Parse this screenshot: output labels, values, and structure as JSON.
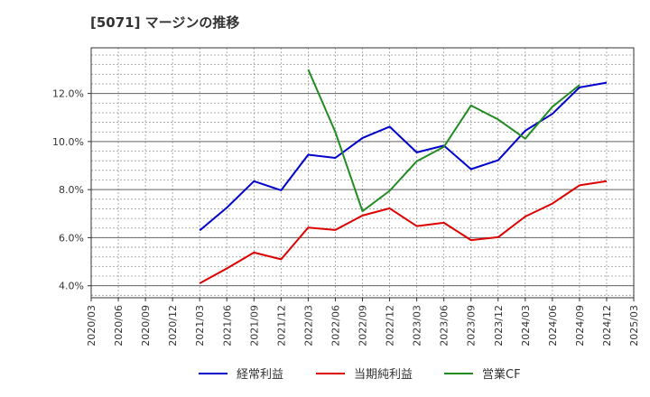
{
  "chart_data": {
    "type": "line",
    "title": "[5071]  マージンの推移",
    "xlabel": "",
    "ylabel": "",
    "ylim": [
      3.5,
      13.9
    ],
    "y_ticks": [
      4.0,
      6.0,
      8.0,
      10.0,
      12.0
    ],
    "y_tick_labels": [
      "4.0%",
      "6.0%",
      "8.0%",
      "10.0%",
      "12.0%"
    ],
    "x_ticks": [
      "2020/03",
      "2020/06",
      "2020/09",
      "2020/12",
      "2021/03",
      "2021/06",
      "2021/09",
      "2021/12",
      "2022/03",
      "2022/06",
      "2022/09",
      "2022/12",
      "2023/03",
      "2023/06",
      "2023/09",
      "2023/12",
      "2024/03",
      "2024/06",
      "2024/09",
      "2024/12",
      "2025/03"
    ],
    "grid": true,
    "legend_position": "bottom",
    "series": [
      {
        "name": "経常利益",
        "color": "#0000cc",
        "x": [
          "2021/03",
          "2021/06",
          "2021/09",
          "2021/12",
          "2022/03",
          "2022/06",
          "2022/09",
          "2022/12",
          "2023/03",
          "2023/06",
          "2023/09",
          "2023/12",
          "2024/03",
          "2024/06",
          "2024/09",
          "2024/12"
        ],
        "values": [
          6.3,
          7.25,
          8.35,
          7.97,
          9.45,
          9.32,
          10.15,
          10.62,
          9.55,
          9.83,
          8.85,
          9.22,
          10.45,
          11.15,
          12.25,
          12.45
        ]
      },
      {
        "name": "当期純利益",
        "color": "#dd0000",
        "x": [
          "2021/03",
          "2021/06",
          "2021/09",
          "2021/12",
          "2022/03",
          "2022/06",
          "2022/09",
          "2022/12",
          "2023/03",
          "2023/06",
          "2023/09",
          "2023/12",
          "2024/03",
          "2024/06",
          "2024/09",
          "2024/12"
        ],
        "values": [
          4.1,
          4.72,
          5.38,
          5.1,
          6.42,
          6.32,
          6.92,
          7.22,
          6.48,
          6.62,
          5.9,
          6.02,
          6.88,
          7.42,
          8.18,
          8.35
        ]
      },
      {
        "name": "営業CF",
        "color": "#228b22",
        "x": [
          "2022/03",
          "2022/06",
          "2022/09",
          "2022/12",
          "2023/03",
          "2023/06",
          "2023/09",
          "2023/12",
          "2024/03",
          "2024/06",
          "2024/09"
        ],
        "values": [
          13.0,
          10.4,
          7.1,
          7.95,
          9.18,
          9.78,
          11.5,
          10.92,
          10.12,
          11.45,
          12.35
        ]
      }
    ]
  }
}
